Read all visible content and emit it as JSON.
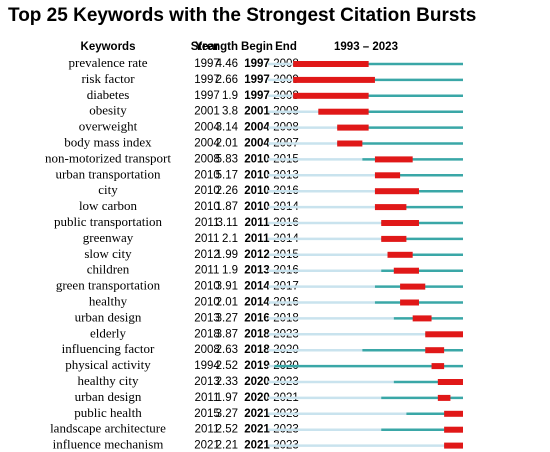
{
  "chart_data": {
    "type": "burst",
    "title": "Top 25 Keywords with the Strongest Citation Bursts",
    "columns": [
      "Keywords",
      "Year",
      "Strength",
      "Begin",
      "End",
      "1993 – 2023"
    ],
    "xlim": [
      1993,
      2023
    ],
    "colors": {
      "before": "#c9e3ee",
      "active": "#3aa7a7",
      "burst": "#e01818"
    },
    "rows": [
      [
        "prevalence rate",
        1997,
        4.46,
        1997,
        2008
      ],
      [
        "risk factor",
        1997,
        2.66,
        1997,
        2009
      ],
      [
        "diabetes",
        1997,
        1.9,
        1997,
        2008
      ],
      [
        "obesity",
        2001,
        3.8,
        2001,
        2008
      ],
      [
        "overweight",
        2004,
        3.14,
        2004,
        2008
      ],
      [
        "body mass index",
        2004,
        2.01,
        2004,
        2007
      ],
      [
        "non-motorized transport",
        2008,
        5.83,
        2010,
        2015
      ],
      [
        "urban transportation",
        2010,
        5.17,
        2010,
        2013
      ],
      [
        "city",
        2010,
        2.26,
        2010,
        2016
      ],
      [
        "low carbon",
        2010,
        1.87,
        2010,
        2014
      ],
      [
        "public transportation",
        2011,
        3.11,
        2011,
        2016
      ],
      [
        "greenway",
        2011,
        2.1,
        2011,
        2014
      ],
      [
        "slow city",
        2012,
        1.99,
        2012,
        2015
      ],
      [
        "children",
        2011,
        1.9,
        2013,
        2016
      ],
      [
        "green transportation",
        2010,
        3.91,
        2014,
        2017
      ],
      [
        "healthy",
        2010,
        2.01,
        2014,
        2016
      ],
      [
        "urban design",
        2013,
        3.27,
        2016,
        2018
      ],
      [
        "elderly",
        2018,
        3.87,
        2018,
        2023
      ],
      [
        "influencing factor",
        2008,
        2.63,
        2018,
        2020
      ],
      [
        "physical activity",
        1994,
        2.52,
        2019,
        2020
      ],
      [
        "healthy city",
        2013,
        2.33,
        2020,
        2023
      ],
      [
        "urban design",
        2011,
        1.97,
        2020,
        2021
      ],
      [
        "public health",
        2015,
        3.27,
        2021,
        2023
      ],
      [
        "landscape architecture",
        2011,
        2.52,
        2021,
        2023
      ],
      [
        "influence mechanism",
        2021,
        2.21,
        2021,
        2023
      ]
    ]
  }
}
